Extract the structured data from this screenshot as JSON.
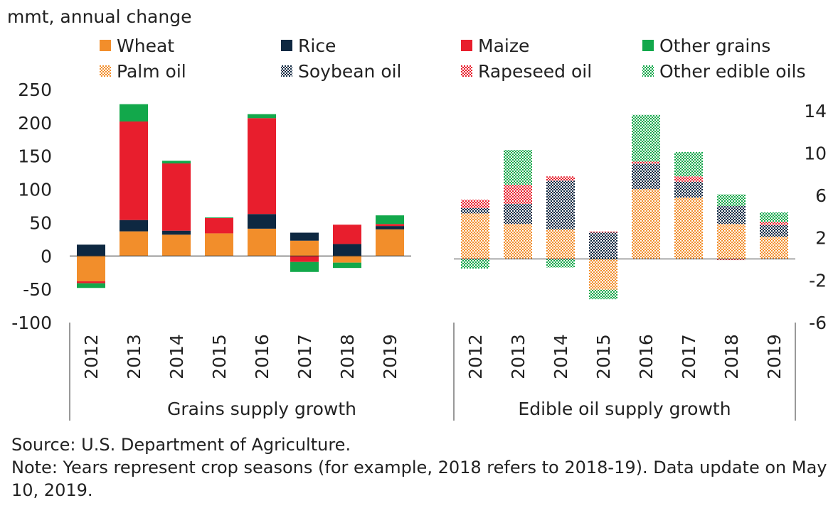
{
  "chart_data": {
    "type": "bar",
    "stacked": true,
    "y_unit_label": "mmt, annual change",
    "left_axis": {
      "ylim": [
        -100,
        250
      ],
      "ticks": [
        "-100",
        "-50",
        "0",
        "50",
        "100",
        "150",
        "200",
        "250"
      ]
    },
    "right_axis": {
      "ylim": [
        -6,
        16
      ],
      "ticks": [
        "-6",
        "-2",
        "2",
        "6",
        "10",
        "14"
      ]
    },
    "legend": [
      {
        "key": "wheat",
        "name": "Wheat",
        "color": "#F28E2B",
        "pattern": "solid"
      },
      {
        "key": "rice",
        "name": "Rice",
        "color": "#0E2841",
        "pattern": "solid"
      },
      {
        "key": "maize",
        "name": "Maize",
        "color": "#E81E2D",
        "pattern": "solid"
      },
      {
        "key": "other_grains",
        "name": "Other grains",
        "color": "#12A84B",
        "pattern": "solid"
      },
      {
        "key": "palm",
        "name": "Palm oil",
        "color": "#F28E2B",
        "pattern": "dotted"
      },
      {
        "key": "soybean",
        "name": "Soybean oil",
        "color": "#0E2841",
        "pattern": "dotted"
      },
      {
        "key": "rapeseed",
        "name": "Rapeseed oil",
        "color": "#E81E2D",
        "pattern": "dotted"
      },
      {
        "key": "other_oils",
        "name": "Other edible oils",
        "color": "#12A84B",
        "pattern": "dotted"
      }
    ],
    "groups": [
      {
        "name": "Grains supply growth",
        "axis": "left",
        "categories": [
          "2012",
          "2013",
          "2014",
          "2015",
          "2016",
          "2017",
          "2018",
          "2019"
        ],
        "series": [
          {
            "key": "wheat",
            "values": [
              -38,
              37,
              32,
              34,
              41,
              23,
              -10,
              40
            ]
          },
          {
            "key": "rice",
            "values": [
              17,
              17,
              6,
              0,
              22,
              12,
              18,
              5
            ]
          },
          {
            "key": "maize",
            "values": [
              -3,
              148,
              101,
              23,
              144,
              -9,
              29,
              3
            ]
          },
          {
            "key": "other_grains",
            "values": [
              -7,
              26,
              4,
              1,
              6,
              -15,
              -8,
              13
            ]
          }
        ]
      },
      {
        "name": "Edible oil supply growth",
        "axis": "right",
        "categories": [
          "2012",
          "2013",
          "2014",
          "2015",
          "2016",
          "2017",
          "2018",
          "2019"
        ],
        "series": [
          {
            "key": "palm",
            "values": [
              4.3,
              3.3,
              2.8,
              -2.9,
              6.6,
              5.8,
              3.3,
              2.1
            ]
          },
          {
            "key": "soybean",
            "values": [
              0.5,
              1.9,
              4.6,
              2.5,
              2.4,
              1.5,
              1.7,
              1.1
            ]
          },
          {
            "key": "rapeseed",
            "values": [
              0.8,
              1.8,
              0.4,
              0.1,
              0.2,
              0.5,
              -0.1,
              0.3
            ]
          },
          {
            "key": "other_oils",
            "values": [
              -0.9,
              3.3,
              -0.8,
              -0.9,
              4.4,
              2.3,
              1.1,
              0.9
            ]
          }
        ]
      }
    ]
  },
  "footer": {
    "source": "Source: U.S. Department of Agriculture.",
    "note": "Note: Years represent crop seasons (for example, 2018 refers to 2018-19). Data update on May 10, 2019."
  }
}
